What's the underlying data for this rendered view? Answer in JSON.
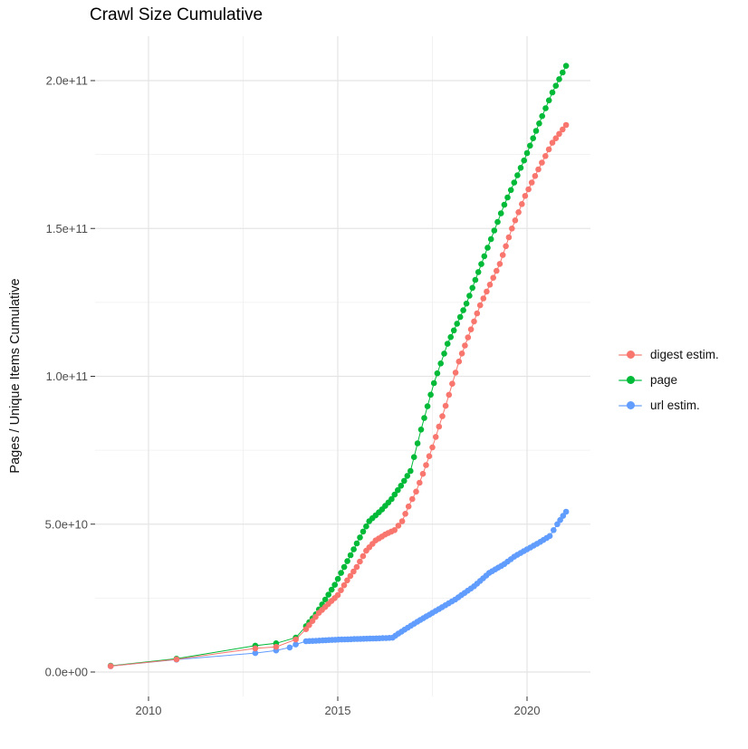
{
  "chart_data": {
    "type": "scatter",
    "title": "Crawl Size Cumulative",
    "xlabel": "",
    "ylabel": "Pages / Unique Items Cumulative",
    "grid": true,
    "legend_position": "right",
    "xlim": [
      2008.4,
      2021.65
    ],
    "ylim": [
      -8000000000,
      215000000000
    ],
    "x_ticks": [
      {
        "label": "2010",
        "value": 2010
      },
      {
        "label": "2015",
        "value": 2015
      },
      {
        "label": "2020",
        "value": 2020
      }
    ],
    "y_ticks": [
      {
        "label": "0.0e+00",
        "value": 0
      },
      {
        "label": "5.0e+10",
        "value": 50000000000
      },
      {
        "label": "1.0e+11",
        "value": 100000000000
      },
      {
        "label": "1.5e+11",
        "value": 150000000000
      },
      {
        "label": "2.0e+11",
        "value": 200000000000
      }
    ],
    "x_minor": [
      2012.5,
      2017.5
    ],
    "y_minor": [
      25000000000,
      75000000000,
      125000000000,
      175000000000
    ],
    "dot_step_years": 0.0833,
    "series": [
      {
        "id": "digest-estim",
        "name": "digest estim.",
        "color": "#F8766D",
        "sparse_points": [
          [
            2009.0,
            2000000000.0
          ],
          [
            2010.74,
            4300000000.0
          ],
          [
            2012.82,
            8000000000.0
          ],
          [
            2013.37,
            8500000000.0
          ],
          [
            2013.89,
            11000000000.0
          ]
        ],
        "dense_anchors": [
          [
            2014.16,
            14500000000.0
          ],
          [
            2014.5,
            20000000000.0
          ],
          [
            2014.75,
            23000000000.0
          ],
          [
            2015.0,
            26000000000.0
          ],
          [
            2015.25,
            31000000000.0
          ],
          [
            2015.5,
            35500000000.0
          ],
          [
            2015.75,
            41000000000.0
          ],
          [
            2016.0,
            44500000000.0
          ],
          [
            2016.25,
            46500000000.0
          ],
          [
            2016.5,
            48000000000.0
          ],
          [
            2016.7,
            51000000000.0
          ],
          [
            2016.87,
            56000000000.0
          ],
          [
            2017.07,
            61000000000.0
          ],
          [
            2017.25,
            67000000000.0
          ],
          [
            2017.5,
            76000000000.0
          ],
          [
            2017.85,
            90000000000.0
          ],
          [
            2018.2,
            105000000000.0
          ],
          [
            2018.76,
            124000000000.0
          ],
          [
            2019.28,
            138000000000.0
          ],
          [
            2019.6,
            150000000000.0
          ],
          [
            2019.95,
            161000000000.0
          ],
          [
            2020.3,
            170000000000.0
          ],
          [
            2020.67,
            179000000000.0
          ],
          [
            2021.03,
            185000000000.0
          ]
        ]
      },
      {
        "id": "page",
        "name": "page",
        "color": "#00BA38",
        "sparse_points": [
          [
            2009.0,
            2100000000.0
          ],
          [
            2010.74,
            4500000000.0
          ],
          [
            2012.82,
            8900000000.0
          ],
          [
            2013.37,
            9700000000.0
          ],
          [
            2013.89,
            11600000000.0
          ]
        ],
        "dense_anchors": [
          [
            2014.16,
            15500000000.0
          ],
          [
            2014.42,
            19500000000.0
          ],
          [
            2014.67,
            24500000000.0
          ],
          [
            2014.92,
            29500000000.0
          ],
          [
            2015.17,
            35500000000.0
          ],
          [
            2015.42,
            41500000000.0
          ],
          [
            2015.67,
            47500000000.0
          ],
          [
            2015.83,
            51000000000.0
          ],
          [
            2016.0,
            53000000000.0
          ],
          [
            2016.17,
            55000000000.0
          ],
          [
            2016.42,
            58500000000.0
          ],
          [
            2016.67,
            63000000000.0
          ],
          [
            2016.92,
            68000000000.0
          ],
          [
            2017.2,
            82000000000.0
          ],
          [
            2017.54,
            97700000000.0
          ],
          [
            2017.9,
            111000000000.0
          ],
          [
            2018.4,
            124600000000.0
          ],
          [
            2018.87,
            140600000000.0
          ],
          [
            2019.4,
            158000000000.0
          ],
          [
            2019.92,
            173000000000.0
          ],
          [
            2020.4,
            188000000000.0
          ],
          [
            2020.67,
            196000000000.0
          ],
          [
            2021.03,
            205000000000.0
          ]
        ]
      },
      {
        "id": "url-estim",
        "name": "url estim.",
        "color": "#619CFF",
        "sparse_points": [
          [
            2009.0,
            2000000000.0
          ],
          [
            2010.74,
            4200000000.0
          ],
          [
            2012.82,
            6400000000.0
          ],
          [
            2013.37,
            7300000000.0
          ],
          [
            2013.73,
            8300000000.0
          ],
          [
            2013.89,
            9300000000.0
          ]
        ],
        "dense_anchors": [
          [
            2014.16,
            10400000000.0
          ],
          [
            2014.6,
            10700000000.0
          ],
          [
            2015.1,
            11000000000.0
          ],
          [
            2015.6,
            11200000000.0
          ],
          [
            2016.1,
            11400000000.0
          ],
          [
            2016.45,
            11600000000.0
          ],
          [
            2016.6,
            13000000000.0
          ],
          [
            2016.85,
            15000000000.0
          ],
          [
            2017.1,
            17000000000.0
          ],
          [
            2017.5,
            20000000000.0
          ],
          [
            2018.1,
            24500000000.0
          ],
          [
            2018.6,
            29000000000.0
          ],
          [
            2019.0,
            33500000000.0
          ],
          [
            2019.4,
            36500000000.0
          ],
          [
            2019.66,
            39000000000.0
          ],
          [
            2020.0,
            41500000000.0
          ],
          [
            2020.35,
            44000000000.0
          ],
          [
            2020.6,
            46000000000.0
          ],
          [
            2020.8,
            50000000000.0
          ],
          [
            2021.03,
            54200000000.0
          ]
        ]
      }
    ],
    "style": {
      "grid_major_color": "#E4E4E4",
      "grid_minor_color": "#EFEFEF",
      "tick_color": "#333333",
      "tick_label_color": "#4D4D4D",
      "background": "#FFFFFF"
    }
  }
}
